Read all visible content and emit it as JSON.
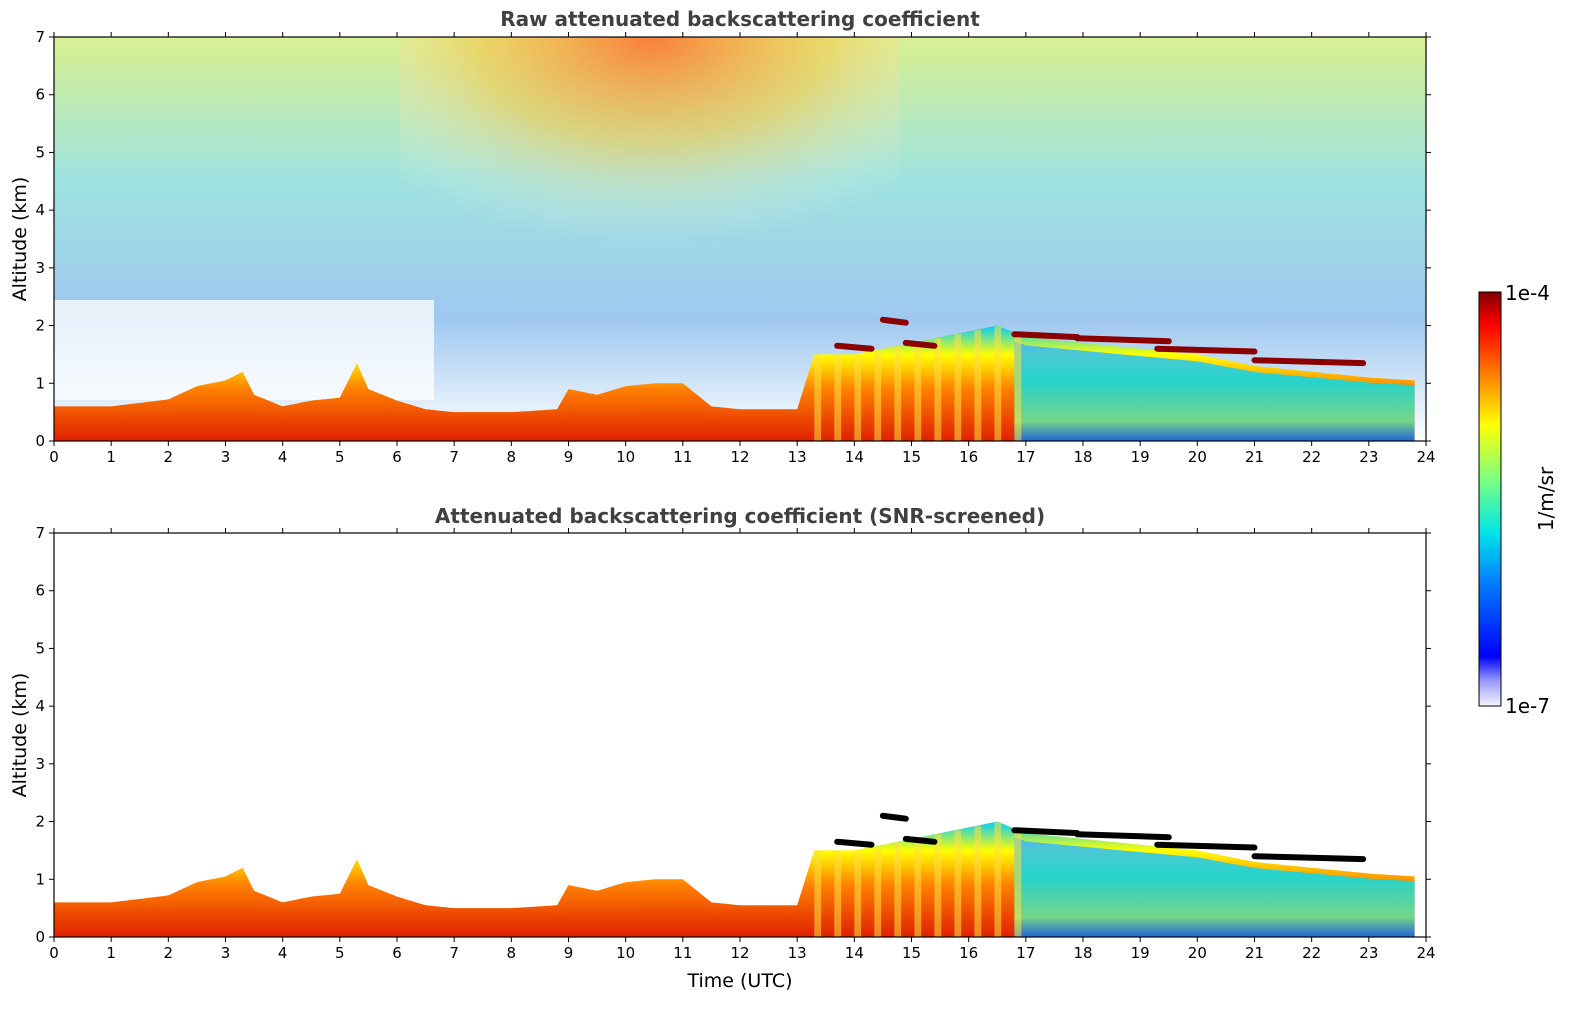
{
  "chart_data": [
    {
      "type": "heatmap",
      "title": "Raw attenuated backscattering coefficient",
      "xlabel": "",
      "ylabel": "Altitude (km)",
      "xlim": [
        0,
        24
      ],
      "ylim": [
        0,
        7
      ],
      "xticks": [
        "0",
        "1",
        "2",
        "3",
        "4",
        "5",
        "6",
        "7",
        "8",
        "9",
        "10",
        "11",
        "12",
        "13",
        "14",
        "15",
        "16",
        "17",
        "18",
        "19",
        "20",
        "21",
        "22",
        "23",
        "24"
      ],
      "yticks": [
        "0",
        "1",
        "2",
        "3",
        "4",
        "5",
        "6",
        "7"
      ],
      "screened": false,
      "boundary_layer_top_km": [
        [
          0,
          0.6
        ],
        [
          1,
          0.6
        ],
        [
          2,
          0.72
        ],
        [
          2.5,
          0.95
        ],
        [
          3,
          1.05
        ],
        [
          3.3,
          1.2
        ],
        [
          3.5,
          0.8
        ],
        [
          4,
          0.6
        ],
        [
          4.5,
          0.7
        ],
        [
          5,
          0.75
        ],
        [
          5.3,
          1.35
        ],
        [
          5.5,
          0.9
        ],
        [
          6,
          0.7
        ],
        [
          6.5,
          0.55
        ],
        [
          7,
          0.5
        ],
        [
          8,
          0.5
        ],
        [
          8.8,
          0.55
        ],
        [
          9,
          0.9
        ],
        [
          9.5,
          0.8
        ],
        [
          10,
          0.95
        ],
        [
          10.5,
          1.0
        ],
        [
          11,
          1.0
        ],
        [
          11.5,
          0.6
        ],
        [
          12,
          0.55
        ],
        [
          13,
          0.55
        ],
        [
          13.3,
          1.5
        ],
        [
          14,
          1.5
        ],
        [
          15,
          1.7
        ],
        [
          16,
          1.9
        ],
        [
          16.5,
          2.0
        ],
        [
          17,
          1.8
        ],
        [
          18,
          1.7
        ],
        [
          19,
          1.6
        ],
        [
          20,
          1.5
        ],
        [
          21,
          1.3
        ],
        [
          22,
          1.2
        ],
        [
          23,
          1.1
        ],
        [
          23.8,
          1.05
        ]
      ],
      "cloud_layers": [
        {
          "x": [
            14.5,
            14.9
          ],
          "alt_km": 2.1
        },
        {
          "x": [
            13.7,
            14.3
          ],
          "alt_km": 1.65
        },
        {
          "x": [
            14.9,
            15.4
          ],
          "alt_km": 1.7
        },
        {
          "x": [
            16.8,
            17.9
          ],
          "alt_km": 1.85
        },
        {
          "x": [
            17.9,
            19.5
          ],
          "alt_km": 1.78
        },
        {
          "x": [
            19.3,
            21.0
          ],
          "alt_km": 1.6
        },
        {
          "x": [
            21.0,
            22.9
          ],
          "alt_km": 1.4
        }
      ]
    },
    {
      "type": "heatmap",
      "title": "Attenuated backscattering coefficient (SNR-screened)",
      "xlabel": "Time (UTC)",
      "ylabel": "Altitude (km)",
      "xlim": [
        0,
        24
      ],
      "ylim": [
        0,
        7
      ],
      "xticks": [
        "0",
        "1",
        "2",
        "3",
        "4",
        "5",
        "6",
        "7",
        "8",
        "9",
        "10",
        "11",
        "12",
        "13",
        "14",
        "15",
        "16",
        "17",
        "18",
        "19",
        "20",
        "21",
        "22",
        "23",
        "24"
      ],
      "yticks": [
        "0",
        "1",
        "2",
        "3",
        "4",
        "5",
        "6",
        "7"
      ],
      "screened": true,
      "boundary_layer_top_km": [
        [
          0,
          0.6
        ],
        [
          1,
          0.6
        ],
        [
          2,
          0.72
        ],
        [
          2.5,
          0.95
        ],
        [
          3,
          1.05
        ],
        [
          3.3,
          1.2
        ],
        [
          3.5,
          0.8
        ],
        [
          4,
          0.6
        ],
        [
          4.5,
          0.7
        ],
        [
          5,
          0.75
        ],
        [
          5.3,
          1.35
        ],
        [
          5.5,
          0.9
        ],
        [
          6,
          0.7
        ],
        [
          6.5,
          0.55
        ],
        [
          7,
          0.5
        ],
        [
          8,
          0.5
        ],
        [
          8.8,
          0.55
        ],
        [
          9,
          0.9
        ],
        [
          9.5,
          0.8
        ],
        [
          10,
          0.95
        ],
        [
          10.5,
          1.0
        ],
        [
          11,
          1.0
        ],
        [
          11.5,
          0.6
        ],
        [
          12,
          0.55
        ],
        [
          13,
          0.55
        ],
        [
          13.3,
          1.5
        ],
        [
          14,
          1.5
        ],
        [
          15,
          1.7
        ],
        [
          16,
          1.9
        ],
        [
          16.5,
          2.0
        ],
        [
          17,
          1.8
        ],
        [
          18,
          1.7
        ],
        [
          19,
          1.6
        ],
        [
          20,
          1.5
        ],
        [
          21,
          1.3
        ],
        [
          22,
          1.2
        ],
        [
          23,
          1.1
        ],
        [
          23.8,
          1.05
        ]
      ],
      "cloud_layers": [
        {
          "x": [
            14.5,
            14.9
          ],
          "alt_km": 2.1
        },
        {
          "x": [
            13.7,
            14.3
          ],
          "alt_km": 1.65
        },
        {
          "x": [
            14.9,
            15.4
          ],
          "alt_km": 1.7
        },
        {
          "x": [
            16.8,
            17.9
          ],
          "alt_km": 1.85
        },
        {
          "x": [
            17.9,
            19.5
          ],
          "alt_km": 1.78
        },
        {
          "x": [
            19.3,
            21.0
          ],
          "alt_km": 1.6
        },
        {
          "x": [
            21.0,
            22.9
          ],
          "alt_km": 1.4
        }
      ]
    }
  ],
  "colorbar": {
    "max_label": "1e-4",
    "min_label": "1e-7",
    "unit_label": "1/m/sr",
    "scale": "log",
    "colormap": "jet"
  },
  "colors": {
    "title": "#404040",
    "axis": "#000000",
    "cloud_raw": "#8b0000",
    "cloud_screened": "#000000"
  }
}
